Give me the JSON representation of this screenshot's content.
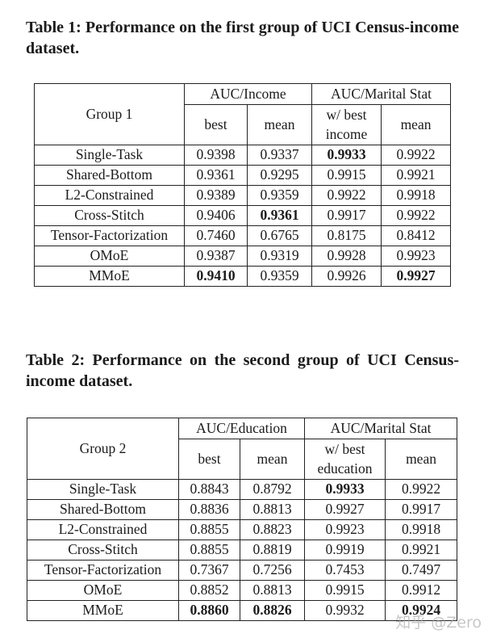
{
  "page": {
    "background": "#ffffff",
    "text_color": "#1b1b1b",
    "border_color": "#222222"
  },
  "watermark": {
    "text": "知乎 @Zero",
    "color": "#a6a6a6"
  },
  "tables": [
    {
      "caption": "Table 1: Performance on the first group of UCI Census-income dataset.",
      "group_label": "Group 1",
      "span_headers": [
        "AUC/Income",
        "AUC/Marital Stat"
      ],
      "sub_headers": [
        "best",
        "mean",
        "w/ best income",
        "mean"
      ],
      "rows": [
        {
          "method": "Single-Task",
          "values": [
            "0.9398",
            "0.9337",
            "0.9933",
            "0.9922"
          ],
          "bold": [
            false,
            false,
            true,
            false
          ]
        },
        {
          "method": "Shared-Bottom",
          "values": [
            "0.9361",
            "0.9295",
            "0.9915",
            "0.9921"
          ],
          "bold": [
            false,
            false,
            false,
            false
          ]
        },
        {
          "method": "L2-Constrained",
          "values": [
            "0.9389",
            "0.9359",
            "0.9922",
            "0.9918"
          ],
          "bold": [
            false,
            false,
            false,
            false
          ]
        },
        {
          "method": "Cross-Stitch",
          "values": [
            "0.9406",
            "0.9361",
            "0.9917",
            "0.9922"
          ],
          "bold": [
            false,
            true,
            false,
            false
          ]
        },
        {
          "method": "Tensor-Factorization",
          "values": [
            "0.7460",
            "0.6765",
            "0.8175",
            "0.8412"
          ],
          "bold": [
            false,
            false,
            false,
            false
          ]
        },
        {
          "method": "OMoE",
          "values": [
            "0.9387",
            "0.9319",
            "0.9928",
            "0.9923"
          ],
          "bold": [
            false,
            false,
            false,
            false
          ]
        },
        {
          "method": "MMoE",
          "values": [
            "0.9410",
            "0.9359",
            "0.9926",
            "0.9927"
          ],
          "bold": [
            true,
            false,
            false,
            true
          ]
        }
      ]
    },
    {
      "caption": "Table 2: Performance on the second group of UCI Census-income dataset.",
      "group_label": "Group 2",
      "span_headers": [
        "AUC/Education",
        "AUC/Marital Stat"
      ],
      "sub_headers": [
        "best",
        "mean",
        "w/ best education",
        "mean"
      ],
      "rows": [
        {
          "method": "Single-Task",
          "values": [
            "0.8843",
            "0.8792",
            "0.9933",
            "0.9922"
          ],
          "bold": [
            false,
            false,
            true,
            false
          ]
        },
        {
          "method": "Shared-Bottom",
          "values": [
            "0.8836",
            "0.8813",
            "0.9927",
            "0.9917"
          ],
          "bold": [
            false,
            false,
            false,
            false
          ]
        },
        {
          "method": "L2-Constrained",
          "values": [
            "0.8855",
            "0.8823",
            "0.9923",
            "0.9918"
          ],
          "bold": [
            false,
            false,
            false,
            false
          ]
        },
        {
          "method": "Cross-Stitch",
          "values": [
            "0.8855",
            "0.8819",
            "0.9919",
            "0.9921"
          ],
          "bold": [
            false,
            false,
            false,
            false
          ]
        },
        {
          "method": "Tensor-Factorization",
          "values": [
            "0.7367",
            "0.7256",
            "0.7453",
            "0.7497"
          ],
          "bold": [
            false,
            false,
            false,
            false
          ]
        },
        {
          "method": "OMoE",
          "values": [
            "0.8852",
            "0.8813",
            "0.9915",
            "0.9912"
          ],
          "bold": [
            false,
            false,
            false,
            false
          ]
        },
        {
          "method": "MMoE",
          "values": [
            "0.8860",
            "0.8826",
            "0.9932",
            "0.9924"
          ],
          "bold": [
            true,
            true,
            false,
            true
          ]
        }
      ]
    }
  ]
}
